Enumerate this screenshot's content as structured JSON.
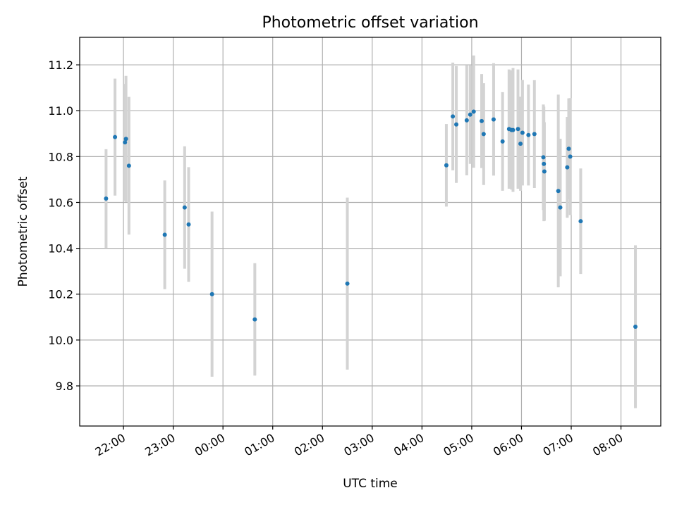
{
  "chart_data": {
    "type": "scatter",
    "title": "Photometric offset variation",
    "xlabel": "UTC time",
    "ylabel": "Photometric offset",
    "x_unit": "hours",
    "x_tick_note": "x values are hours after 20:00 UTC; ticks past 24 wrap to next day",
    "x_ticks": [
      {
        "x": 2,
        "label": "22:00"
      },
      {
        "x": 3,
        "label": "23:00"
      },
      {
        "x": 4,
        "label": "00:00"
      },
      {
        "x": 5,
        "label": "01:00"
      },
      {
        "x": 6,
        "label": "02:00"
      },
      {
        "x": 7,
        "label": "03:00"
      },
      {
        "x": 8,
        "label": "04:00"
      },
      {
        "x": 9,
        "label": "05:00"
      },
      {
        "x": 10,
        "label": "06:00"
      },
      {
        "x": 11,
        "label": "07:00"
      },
      {
        "x": 12,
        "label": "08:00"
      }
    ],
    "y_ticks": [
      {
        "y": 9.8,
        "label": "9.8"
      },
      {
        "y": 10.0,
        "label": "10.0"
      },
      {
        "y": 10.2,
        "label": "10.2"
      },
      {
        "y": 10.4,
        "label": "10.4"
      },
      {
        "y": 10.6,
        "label": "10.6"
      },
      {
        "y": 10.8,
        "label": "10.8"
      },
      {
        "y": 11.0,
        "label": "11.0"
      },
      {
        "y": 11.2,
        "label": "11.2"
      }
    ],
    "xlim": [
      1.12,
      12.8
    ],
    "ylim": [
      9.625,
      11.32
    ],
    "grid": true,
    "point_color": "#1f77b4",
    "errorbar_color": "#d3d3d3",
    "points": [
      {
        "x": 1.65,
        "y": 10.617,
        "err": 0.215
      },
      {
        "x": 1.83,
        "y": 10.885,
        "err": 0.255
      },
      {
        "x": 2.03,
        "y": 10.862,
        "err": 0.255
      },
      {
        "x": 2.05,
        "y": 10.877,
        "err": 0.275
      },
      {
        "x": 2.11,
        "y": 10.76,
        "err": 0.3
      },
      {
        "x": 2.83,
        "y": 10.459,
        "err": 0.237
      },
      {
        "x": 3.23,
        "y": 10.578,
        "err": 0.267
      },
      {
        "x": 3.31,
        "y": 10.504,
        "err": 0.25
      },
      {
        "x": 3.78,
        "y": 10.2,
        "err": 0.36
      },
      {
        "x": 4.64,
        "y": 10.09,
        "err": 0.245
      },
      {
        "x": 6.5,
        "y": 10.246,
        "err": 0.375
      },
      {
        "x": 8.49,
        "y": 10.762,
        "err": 0.18
      },
      {
        "x": 8.62,
        "y": 10.975,
        "err": 0.235
      },
      {
        "x": 8.69,
        "y": 10.94,
        "err": 0.255
      },
      {
        "x": 8.9,
        "y": 10.958,
        "err": 0.24
      },
      {
        "x": 8.97,
        "y": 10.983,
        "err": 0.215
      },
      {
        "x": 9.04,
        "y": 10.996,
        "err": 0.245
      },
      {
        "x": 9.2,
        "y": 10.955,
        "err": 0.205
      },
      {
        "x": 9.24,
        "y": 10.898,
        "err": 0.222
      },
      {
        "x": 9.44,
        "y": 10.962,
        "err": 0.245
      },
      {
        "x": 9.62,
        "y": 10.866,
        "err": 0.215
      },
      {
        "x": 9.75,
        "y": 10.92,
        "err": 0.26
      },
      {
        "x": 9.8,
        "y": 10.916,
        "err": 0.26
      },
      {
        "x": 9.83,
        "y": 10.916,
        "err": 0.27
      },
      {
        "x": 9.93,
        "y": 10.92,
        "err": 0.26
      },
      {
        "x": 9.98,
        "y": 10.856,
        "err": 0.205
      },
      {
        "x": 10.02,
        "y": 10.904,
        "err": 0.23
      },
      {
        "x": 10.14,
        "y": 10.894,
        "err": 0.22
      },
      {
        "x": 10.26,
        "y": 10.898,
        "err": 0.235
      },
      {
        "x": 10.44,
        "y": 10.797,
        "err": 0.23
      },
      {
        "x": 10.45,
        "y": 10.768,
        "err": 0.25
      },
      {
        "x": 10.46,
        "y": 10.735,
        "err": 0.215
      },
      {
        "x": 10.74,
        "y": 10.65,
        "err": 0.42
      },
      {
        "x": 10.78,
        "y": 10.578,
        "err": 0.3
      },
      {
        "x": 10.92,
        "y": 10.753,
        "err": 0.22
      },
      {
        "x": 10.95,
        "y": 10.834,
        "err": 0.22
      },
      {
        "x": 10.98,
        "y": 10.8,
        "err": 0.255
      },
      {
        "x": 11.19,
        "y": 10.518,
        "err": 0.23
      },
      {
        "x": 12.29,
        "y": 10.058,
        "err": 0.355
      }
    ]
  }
}
